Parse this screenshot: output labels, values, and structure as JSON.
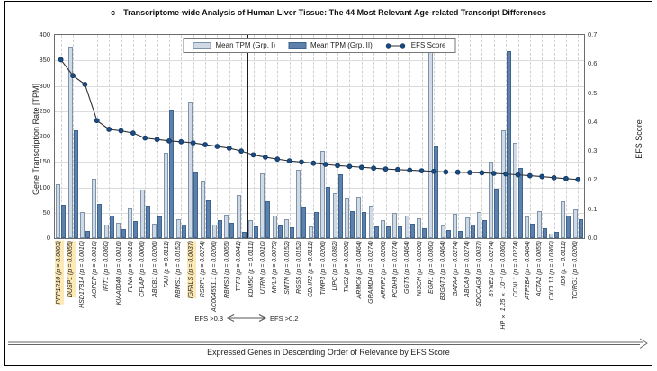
{
  "figure": {
    "title_prefix": "c",
    "title": "Transcriptome-wide Analysis of Human Liver Tissue: The 44 Most Relevant Age-related Transcript Differences",
    "ylabel_left": "Gene Transcription Rate [TPM]",
    "ylabel_right": "EFS Score",
    "xlabel": "Expressed Genes in Descending Order of Relevance by EFS Score",
    "annotation_left": "EFS >0.3",
    "annotation_right": "EFS >0.2"
  },
  "legend": {
    "grp1": "Mean TPM (Grp. I)",
    "grp2": "Mean TPM (Grp. II)",
    "efs": "EFS Score"
  },
  "colors": {
    "grp1_fill": "#cfdae6",
    "grp1_border": "#8094a9",
    "grp2_fill": "#5d81aa",
    "grp2_border": "#3c648f",
    "efs_line": "#2f2f2f",
    "efs_marker": "#1a4d85",
    "highlight": "#fce9b5",
    "grid": "#dcdcdc"
  },
  "chart_data": {
    "type": "bar+line",
    "title": "Transcriptome-wide Analysis of Human Liver Tissue: The 44 Most Relevant Age-related Transcript Differences",
    "xlabel": "Expressed Genes in Descending Order of Relevance by EFS Score",
    "ylabel_left": "Gene Transcription Rate [TPM]",
    "ylabel_right": "EFS Score",
    "ylim_left": [
      0,
      400
    ],
    "ytick_step_left": 50,
    "ylim_right": [
      0,
      0.7
    ],
    "ytick_step_right": 0.1,
    "grid": true,
    "legend_position": "top-center-inside",
    "categories": [
      "PPP1R10",
      "DUSP1",
      "HSD17B14",
      "AOPEP",
      "IFIT1",
      "KIAA0040",
      "FLNA",
      "CFLAR",
      "ABCB1",
      "FAH",
      "RBMS1",
      "IGFALS",
      "RSRP1",
      "AC004551.1",
      "RBMS3",
      "TFF3",
      "KDM5C",
      "UTRN",
      "MYL9",
      "SMTN",
      "RGS5",
      "CDHR2",
      "TIMP3",
      "LIPC",
      "TNS2",
      "ARMC6",
      "GRAMD4",
      "ARFIP2",
      "PCDH9",
      "GGT5",
      "NISCH",
      "EGR1",
      "B3GAT3",
      "GATA4",
      "ABCA9",
      "SDCCAG8",
      "SYNE2",
      "HP × 1.25 × 10⁻²",
      "CCNL1",
      "ATP2B4",
      "ACTA2",
      "CXCL13",
      "ID3",
      "TCIRG1"
    ],
    "p_values": [
      "0.0003",
      "0.0055",
      "0.0010",
      "0.0010",
      "0.0360",
      "0.0016",
      "0.0016",
      "0.0006",
      "0.0206",
      "0.0111",
      "0.0152",
      "0.0037",
      "0.0274",
      "0.0206",
      "0.0055",
      "0.0041",
      "0.0111",
      "0.0010",
      "0.0079",
      "0.0152",
      "0.0152",
      "0.0111",
      "0.0206",
      "0.0382",
      "0.0206",
      "0.0464",
      "0.0274",
      "0.0206",
      "0.0274",
      "0.0464",
      "0.0206",
      "0.0360",
      "0.0464",
      "0.0274",
      "0.0274",
      "0.0037",
      "0.0274",
      "0.0360",
      "0.0274",
      "0.0464",
      "0.0055",
      "0.0360",
      "0.0111",
      "0.0206"
    ],
    "series": [
      {
        "name": "Mean TPM (Grp. I)",
        "values": [
          107,
          377,
          52,
          117,
          26,
          30,
          59,
          95,
          29,
          168,
          37,
          268,
          111,
          26,
          46,
          85,
          35,
          128,
          45,
          38,
          134,
          23,
          171,
          89,
          80,
          81,
          64,
          36,
          49,
          45,
          39,
          388,
          25,
          48,
          40,
          51,
          150,
          212,
          188,
          42,
          53,
          8,
          73,
          57
        ]
      },
      {
        "name": "Mean TPM (Grp. II)",
        "values": [
          66,
          213,
          15,
          68,
          45,
          18,
          33,
          64,
          43,
          252,
          27,
          130,
          74,
          35,
          31,
          13,
          23,
          73,
          25,
          22,
          62,
          51,
          101,
          126,
          54,
          52,
          23,
          23,
          23,
          29,
          20,
          180,
          16,
          15,
          26,
          35,
          98,
          368,
          138,
          29,
          20,
          12,
          44,
          38
        ]
      },
      {
        "name": "EFS Score",
        "axis": "right",
        "values": [
          0.615,
          0.56,
          0.53,
          0.405,
          0.375,
          0.37,
          0.362,
          0.345,
          0.34,
          0.335,
          0.332,
          0.328,
          0.322,
          0.316,
          0.31,
          0.3,
          0.287,
          0.279,
          0.272,
          0.266,
          0.262,
          0.258,
          0.254,
          0.25,
          0.247,
          0.244,
          0.241,
          0.238,
          0.236,
          0.234,
          0.232,
          0.23,
          0.228,
          0.227,
          0.226,
          0.225,
          0.223,
          0.221,
          0.218,
          0.215,
          0.212,
          0.208,
          0.205,
          0.202
        ]
      }
    ],
    "highlighted_categories": [
      0,
      1,
      11
    ],
    "divider_after_index": 15,
    "annotations": {
      "left_of_divider": "EFS >0.3",
      "right_of_divider": "EFS >0.2"
    }
  }
}
